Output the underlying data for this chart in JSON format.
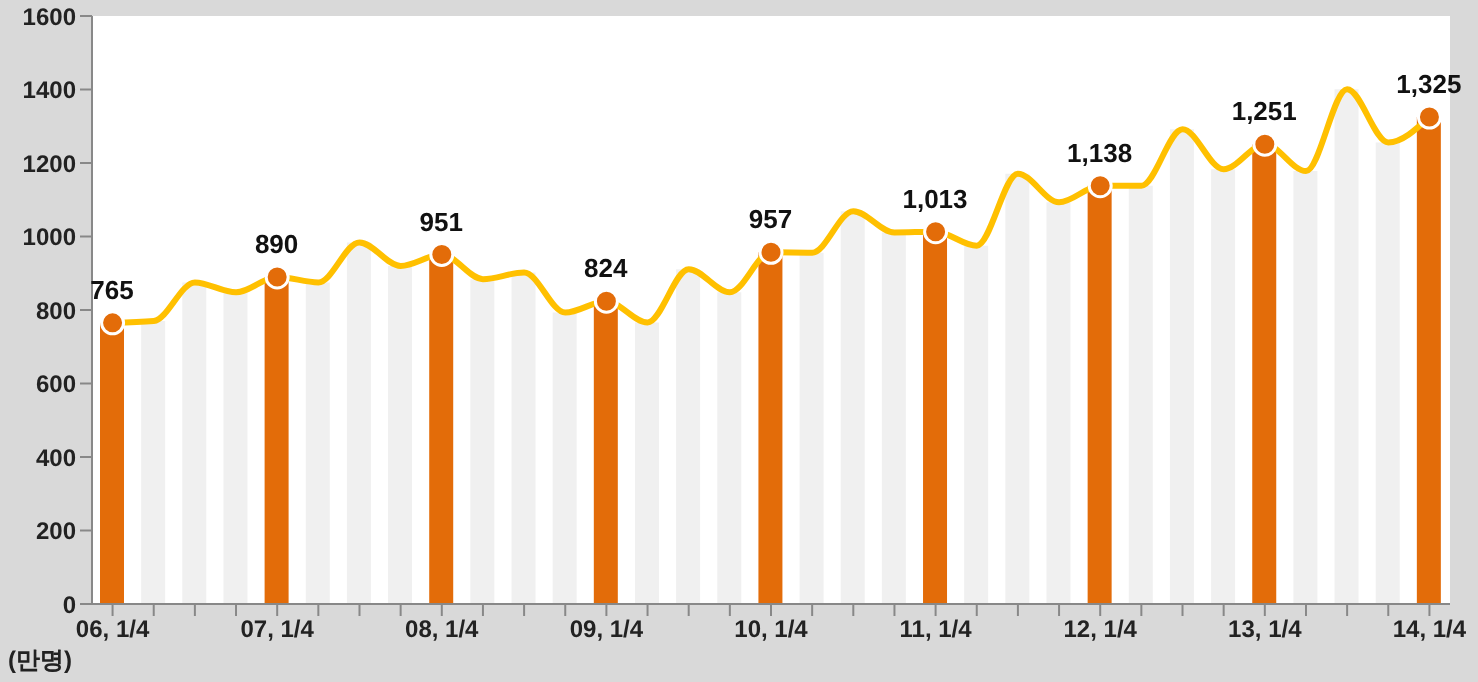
{
  "chart_data": {
    "type": "bar",
    "ylabel": "(만명)",
    "categories": [
      "06, 1/4",
      null,
      null,
      null,
      "07, 1/4",
      null,
      null,
      null,
      "08, 1/4",
      null,
      null,
      null,
      "09, 1/4",
      null,
      null,
      null,
      "10, 1/4",
      null,
      null,
      null,
      "11, 1/4",
      null,
      null,
      null,
      "12, 1/4",
      null,
      null,
      null,
      "13, 1/4",
      null,
      null,
      null,
      "14, 1/4"
    ],
    "series": [
      {
        "colors": [
          "#e36c09",
          "#f0f0f0",
          "#f0f0f0",
          "#f0f0f0",
          "#e36c09",
          "#f0f0f0",
          "#f0f0f0",
          "#f0f0f0",
          "#e36c09",
          "#f0f0f0",
          "#f0f0f0",
          "#f0f0f0",
          "#e36c09",
          "#f0f0f0",
          "#f0f0f0",
          "#f0f0f0",
          "#e36c09",
          "#f0f0f0",
          "#f0f0f0",
          "#f0f0f0",
          "#e36c09",
          "#f0f0f0",
          "#f0f0f0",
          "#f0f0f0",
          "#e36c09",
          "#f0f0f0",
          "#f0f0f0",
          "#f0f0f0",
          "#e36c09",
          "#f0f0f0",
          "#f0f0f0",
          "#f0f0f0",
          "#e36c09"
        ],
        "values": [
          765,
          770,
          875,
          848,
          890,
          875,
          984,
          920,
          951,
          884,
          902,
          793,
          824,
          766,
          911,
          848,
          957,
          956,
          1069,
          1011,
          1013,
          975,
          1171,
          1093,
          1138,
          1138,
          1292,
          1183,
          1251,
          1178,
          1401,
          1256,
          1325
        ],
        "value_labels": [
          "765",
          null,
          null,
          null,
          "890",
          null,
          null,
          null,
          "951",
          null,
          null,
          null,
          "824",
          null,
          null,
          null,
          "957",
          null,
          null,
          null,
          "1,013",
          null,
          null,
          null,
          "1,138",
          null,
          null,
          null,
          "1,251",
          null,
          null,
          null,
          "1,325"
        ]
      },
      {
        "type": "line",
        "color": "#ffc000",
        "values": [
          765,
          770,
          875,
          848,
          890,
          875,
          984,
          920,
          951,
          884,
          902,
          793,
          824,
          766,
          911,
          848,
          957,
          956,
          1069,
          1011,
          1013,
          975,
          1171,
          1093,
          1138,
          1138,
          1292,
          1183,
          1251,
          1178,
          1401,
          1256,
          1325
        ]
      },
      {
        "type": "scatter",
        "color": "#e36c09",
        "x": [
          "06, 1/4",
          "07, 1/4",
          "08, 1/4",
          "09, 1/4",
          "10, 1/4",
          "11, 1/4",
          "12, 1/4",
          "13, 1/4",
          "14, 1/4"
        ],
        "values": [
          765,
          890,
          951,
          824,
          957,
          1013,
          1138,
          1251,
          1325
        ]
      }
    ],
    "ylim": [
      0,
      1600
    ],
    "yticks": [
      0,
      200,
      400,
      600,
      800,
      1000,
      1200,
      1400,
      1600
    ],
    "grid": false,
    "legend": false
  }
}
